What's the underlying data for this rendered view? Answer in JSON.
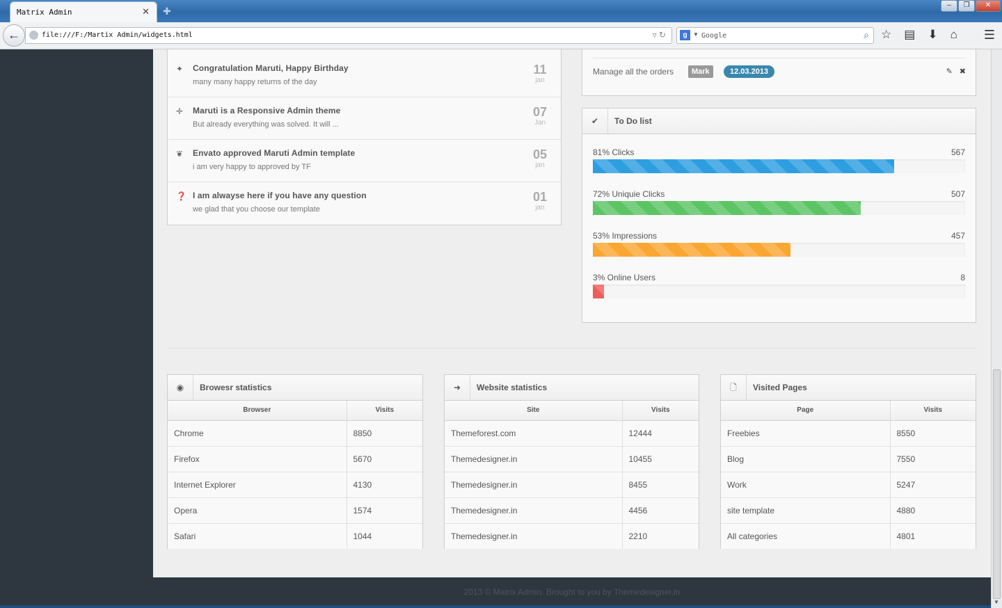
{
  "browser": {
    "tab_title": "Matrix Admin",
    "url": "file:///F:/Martix Admin/widgets.html",
    "search_placeholder": "Google"
  },
  "recent_posts": [
    {
      "icon": "gift-icon",
      "title": "Congratulation Maruti, Happy Birthday",
      "desc": "many many happy returns of the day",
      "day": "11",
      "month": "jan"
    },
    {
      "icon": "move-icon",
      "title": "Maruti is a Responsive Admin theme",
      "desc": "But already everything was solved. It will ...",
      "day": "07",
      "month": "Jan"
    },
    {
      "icon": "leaf-icon",
      "title": "Envato approved Maruti Admin template",
      "desc": "i am very happy to approved by TF",
      "day": "05",
      "month": "jan"
    },
    {
      "icon": "question-icon",
      "title": "I am alwayse here if you have any question",
      "desc": "we glad that you choose our template",
      "day": "01",
      "month": "jan"
    }
  ],
  "orders": {
    "text": "Manage all the orders",
    "badge": "Mark",
    "date": "12.03.2013"
  },
  "todo": {
    "title": "To Do list",
    "items": [
      {
        "label": "81% Clicks",
        "value": "567",
        "percent": 81,
        "color": "#2d9fe0"
      },
      {
        "label": "72% Uniquie Clicks",
        "value": "507",
        "percent": 72,
        "color": "#5cc464"
      },
      {
        "label": "53% Impressions",
        "value": "457",
        "percent": 53,
        "color": "#faa732"
      },
      {
        "label": "3% Online Users",
        "value": "8",
        "percent": 3,
        "color": "#ee5f5b"
      }
    ]
  },
  "browser_stats": {
    "title": "Browesr statistics",
    "columns": [
      "Browser",
      "Visits"
    ],
    "rows": [
      [
        "Chrome",
        "8850"
      ],
      [
        "Firefox",
        "5670"
      ],
      [
        "Internet Explorer",
        "4130"
      ],
      [
        "Opera",
        "1574"
      ],
      [
        "Safari",
        "1044"
      ]
    ]
  },
  "website_stats": {
    "title": "Website statistics",
    "columns": [
      "Site",
      "Visits"
    ],
    "rows": [
      [
        "Themeforest.com",
        "12444"
      ],
      [
        "Themedesigner.in",
        "10455"
      ],
      [
        "Themedesigner.in",
        "8455"
      ],
      [
        "Themedesigner.in",
        "4456"
      ],
      [
        "Themedesigner.in",
        "2210"
      ]
    ]
  },
  "visited_pages": {
    "title": "Visited Pages",
    "columns": [
      "Page",
      "Visits"
    ],
    "rows": [
      [
        "Freebies",
        "8550"
      ],
      [
        "Blog",
        "7550"
      ],
      [
        "Work",
        "5247"
      ],
      [
        "site template",
        "4880"
      ],
      [
        "All categories",
        "4801"
      ]
    ]
  },
  "footer": "2013 © Matrix Admin. Brought to you by Themedesigner.in"
}
